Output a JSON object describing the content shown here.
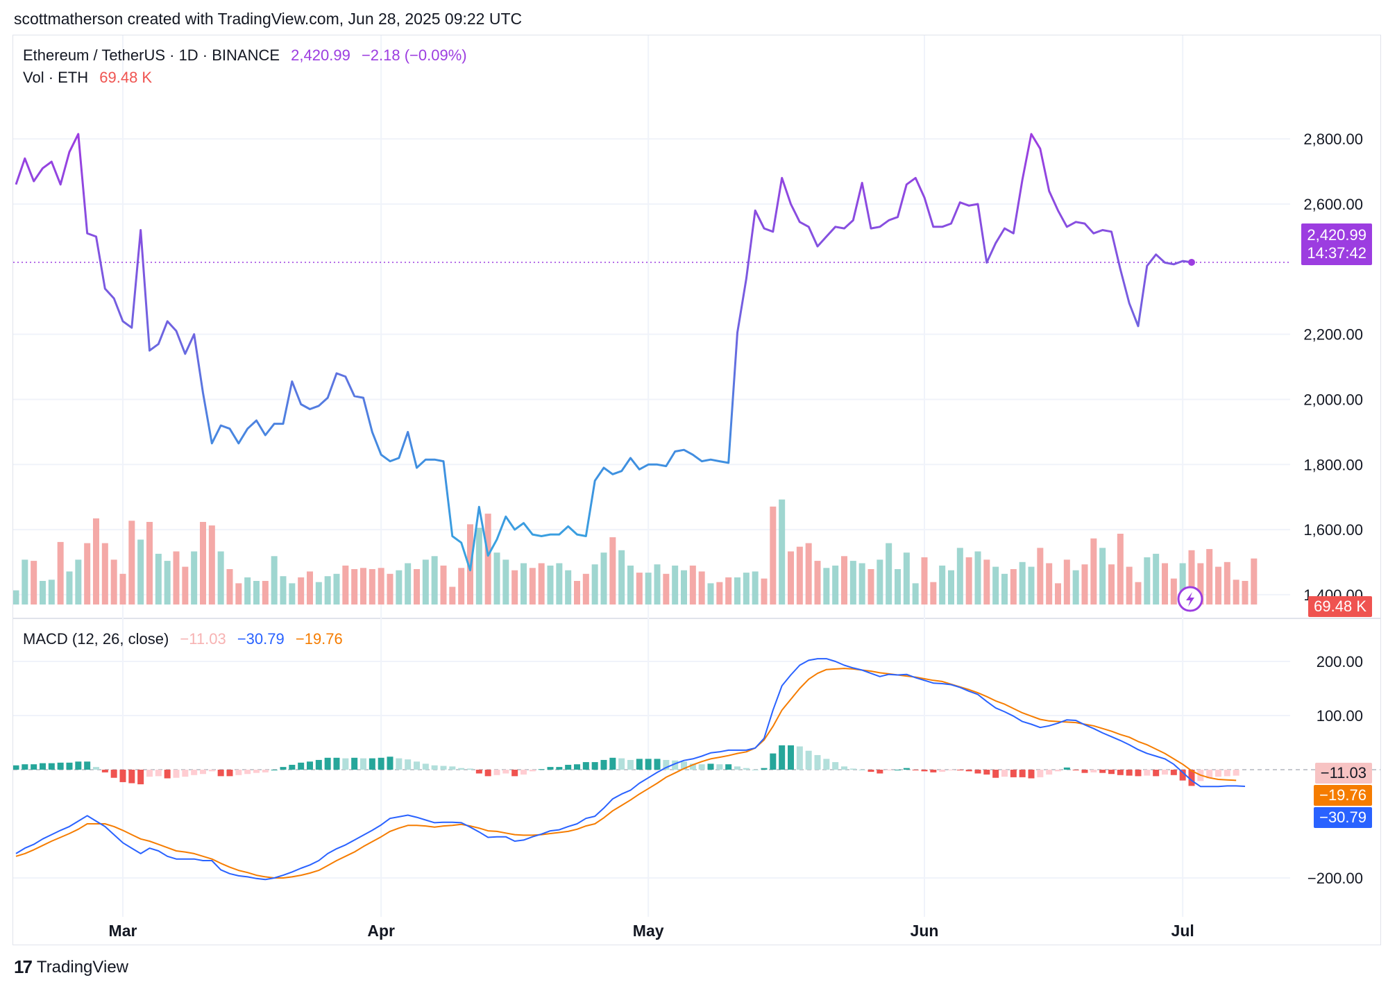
{
  "header": {
    "attribution": "scottmatherson created with TradingView.com, Jun 28, 2025 09:22 UTC"
  },
  "legend": {
    "symbol": "Ethereum / TetherUS · 1D · BINANCE",
    "last": "2,420.99",
    "change": "−2.18 (−0.09%)",
    "vol_label": "Vol · ETH",
    "vol_value": "69.48 K"
  },
  "macd_legend": {
    "label": "MACD (12, 26, close)",
    "hist": "−11.03",
    "macd": "−30.79",
    "signal": "−19.76"
  },
  "tags": {
    "price": "2,420.99",
    "countdown": "14:37:42",
    "volume": "69.48 K",
    "hist": "−11.03",
    "signal": "−19.76",
    "macd": "−30.79"
  },
  "colors": {
    "price_line_end": "#9c3de0",
    "price_line_mid": "#3a9fe0",
    "up": "#26a69a",
    "down": "#ef5350",
    "macd": "#2962ff",
    "signal": "#f57c00"
  },
  "footer": {
    "brand": "TradingView",
    "logo": "17"
  },
  "chart_data": [
    {
      "type": "line",
      "title": "Ethereum / TetherUS · 1D · BINANCE",
      "x_range": [
        "2025-02-17",
        "2025-06-28"
      ],
      "x_ticks": [
        "Mar",
        "Apr",
        "May",
        "Jun",
        "Jul"
      ],
      "y_ticks": [
        "2,800.00",
        "2,600.00",
        "2,200.00",
        "2,000.00",
        "1,800.00",
        "1,600.00",
        "1,400.00"
      ],
      "ylim": [
        1370,
        2990
      ],
      "series": [
        {
          "values": [
            2660,
            2740,
            2670,
            2710,
            2730,
            2660,
            2760,
            2815,
            2510,
            2500,
            2340,
            2310,
            2240,
            2220,
            2520,
            2150,
            2170,
            2240,
            2210,
            2140,
            2200,
            2020,
            1865,
            1920,
            1910,
            1865,
            1910,
            1935,
            1890,
            1925,
            1925,
            2055,
            1985,
            1970,
            1980,
            2005,
            2080,
            2070,
            2010,
            2005,
            1900,
            1830,
            1810,
            1820,
            1900,
            1790,
            1815,
            1815,
            1810,
            1580,
            1560,
            1475,
            1670,
            1520,
            1570,
            1640,
            1600,
            1620,
            1585,
            1580,
            1585,
            1585,
            1610,
            1585,
            1580,
            1750,
            1790,
            1770,
            1780,
            1820,
            1785,
            1800,
            1800,
            1795,
            1840,
            1845,
            1830,
            1810,
            1815,
            1810,
            1805,
            2205,
            2370,
            2580,
            2525,
            2515,
            2680,
            2600,
            2545,
            2530,
            2470,
            2500,
            2530,
            2525,
            2550,
            2665,
            2525,
            2530,
            2550,
            2560,
            2660,
            2680,
            2620,
            2530,
            2530,
            2540,
            2605,
            2595,
            2600,
            2420,
            2480,
            2525,
            2510,
            2675,
            2815,
            2770,
            2640,
            2580,
            2530,
            2545,
            2540,
            2510,
            2520,
            2515,
            2400,
            2295,
            2225,
            2410,
            2445,
            2420,
            2415,
            2425,
            2421
          ]
        }
      ]
    },
    {
      "type": "bar",
      "title": "Vol · ETH",
      "last": "69.48 K",
      "series": [
        {
          "values": [
            12,
            38,
            37,
            20,
            21,
            53,
            28,
            38,
            52,
            73,
            52,
            38,
            26,
            71,
            55,
            70,
            43,
            37,
            45,
            32,
            45,
            70,
            67,
            45,
            30,
            18,
            23,
            20,
            20,
            41,
            24,
            18,
            23,
            28,
            19,
            24,
            26,
            33,
            30,
            31,
            30,
            31,
            26,
            29,
            35,
            30,
            38,
            41,
            33,
            15,
            31,
            68,
            65,
            77,
            44,
            38,
            29,
            35,
            31,
            35,
            33,
            35,
            29,
            20,
            26,
            34,
            44,
            57,
            46,
            33,
            27,
            27,
            34,
            26,
            33,
            29,
            33,
            28,
            18,
            19,
            23,
            23,
            27,
            28,
            22,
            83,
            89,
            45,
            49,
            52,
            37,
            31,
            33,
            41,
            37,
            35,
            30,
            38,
            52,
            30,
            44,
            18,
            40,
            19,
            33,
            29,
            48,
            40,
            45,
            38,
            32,
            26,
            30,
            36,
            32,
            48,
            35,
            18,
            38,
            29,
            34,
            56,
            48,
            34,
            60,
            32,
            19,
            40,
            43,
            35,
            22,
            35,
            46,
            35,
            47,
            32,
            36,
            21,
            20,
            39
          ]
        }
      ],
      "directions": "mixed up/down colored bars"
    },
    {
      "type": "line",
      "title": "MACD (12, 26, close)",
      "ylim": [
        -250,
        250
      ],
      "y_ticks": [
        "200.00",
        "100.00",
        "−200.00"
      ],
      "series": [
        {
          "name": "MACD",
          "values": [
            -155,
            -145,
            -138,
            -128,
            -120,
            -112,
            -105,
            -95,
            -85,
            -95,
            -105,
            -120,
            -135,
            -145,
            -155,
            -145,
            -150,
            -160,
            -165,
            -165,
            -165,
            -168,
            -168,
            -185,
            -192,
            -196,
            -198,
            -201,
            -203,
            -200,
            -195,
            -189,
            -182,
            -176,
            -168,
            -155,
            -146,
            -139,
            -130,
            -121,
            -112,
            -102,
            -90,
            -87,
            -84,
            -88,
            -93,
            -98,
            -97,
            -97,
            -98,
            -106,
            -115,
            -125,
            -124,
            -124,
            -132,
            -130,
            -124,
            -119,
            -113,
            -111,
            -105,
            -100,
            -90,
            -86,
            -71,
            -54,
            -45,
            -38,
            -25,
            -15,
            -5,
            4,
            11,
            17,
            20,
            25,
            31,
            33,
            36,
            36,
            36,
            40,
            58,
            110,
            155,
            175,
            193,
            202,
            205,
            205,
            200,
            193,
            188,
            184,
            178,
            172,
            176,
            175,
            176,
            170,
            165,
            160,
            159,
            157,
            152,
            145,
            139,
            126,
            114,
            107,
            99,
            89,
            84,
            78,
            81,
            86,
            92,
            91,
            83,
            76,
            68,
            61,
            54,
            46,
            37,
            30,
            25,
            20,
            10,
            -5,
            -20,
            -31,
            -31,
            -31,
            -30,
            -30,
            -30.79
          ]
        },
        {
          "name": "Signal",
          "values": [
            -160,
            -155,
            -148,
            -140,
            -132,
            -125,
            -118,
            -110,
            -100,
            -100,
            -100,
            -105,
            -112,
            -120,
            -128,
            -132,
            -138,
            -144,
            -150,
            -152,
            -155,
            -160,
            -165,
            -173,
            -180,
            -186,
            -190,
            -195,
            -198,
            -200,
            -200,
            -198,
            -195,
            -191,
            -186,
            -177,
            -168,
            -160,
            -152,
            -142,
            -133,
            -124,
            -114,
            -108,
            -103,
            -103,
            -104,
            -106,
            -104,
            -103,
            -101,
            -104,
            -108,
            -113,
            -114,
            -117,
            -120,
            -121,
            -121,
            -120,
            -118,
            -116,
            -114,
            -110,
            -104,
            -100,
            -89,
            -76,
            -66,
            -56,
            -45,
            -35,
            -25,
            -14,
            -6,
            2,
            9,
            15,
            20,
            23,
            26,
            30,
            33,
            40,
            55,
            80,
            110,
            130,
            150,
            167,
            178,
            185,
            186,
            187,
            186,
            184,
            182,
            179,
            177,
            175,
            173,
            171,
            168,
            165,
            163,
            158,
            153,
            148,
            142,
            135,
            127,
            121,
            113,
            105,
            99,
            93,
            90,
            89,
            88,
            87,
            84,
            81,
            76,
            71,
            65,
            60,
            52,
            46,
            38,
            30,
            20,
            10,
            -2,
            -10,
            -15,
            -18,
            -19,
            -19.76
          ]
        }
      ],
      "histogram": [
        8,
        10,
        10,
        12,
        12,
        13,
        13,
        15,
        15,
        5,
        -5,
        -15,
        -23,
        -25,
        -27,
        -13,
        -12,
        -16,
        -15,
        -13,
        -10,
        -8,
        -3,
        -12,
        -12,
        -10,
        -8,
        -6,
        -5,
        0,
        5,
        9,
        13,
        15,
        18,
        22,
        22,
        21,
        22,
        21,
        21,
        22,
        24,
        21,
        19,
        15,
        11,
        8,
        7,
        6,
        3,
        2,
        -7,
        -12,
        -10,
        -7,
        -12,
        -9,
        -3,
        1,
        5,
        5,
        9,
        10,
        14,
        14,
        18,
        22,
        21,
        18,
        20,
        20,
        20,
        18,
        17,
        15,
        11,
        10,
        11,
        10,
        10,
        6,
        3,
        0,
        3,
        30,
        45,
        45,
        43,
        35,
        27,
        20,
        14,
        6,
        2,
        0,
        -4,
        -7,
        -1,
        0,
        3,
        -1,
        -3,
        -5,
        -4,
        -1,
        -1,
        -3,
        -7,
        -9,
        -15,
        -13,
        -14,
        -14,
        -16,
        -14,
        -9,
        -3,
        4,
        -1,
        -6,
        -5,
        -6,
        -8,
        -10,
        -11,
        -12,
        -11,
        -12,
        -9,
        -10,
        -20,
        -30,
        -21,
        -16,
        -13,
        -12,
        -11.03
      ],
      "series_labels": [
        "−11.03",
        "−30.79",
        "−19.76"
      ]
    }
  ]
}
